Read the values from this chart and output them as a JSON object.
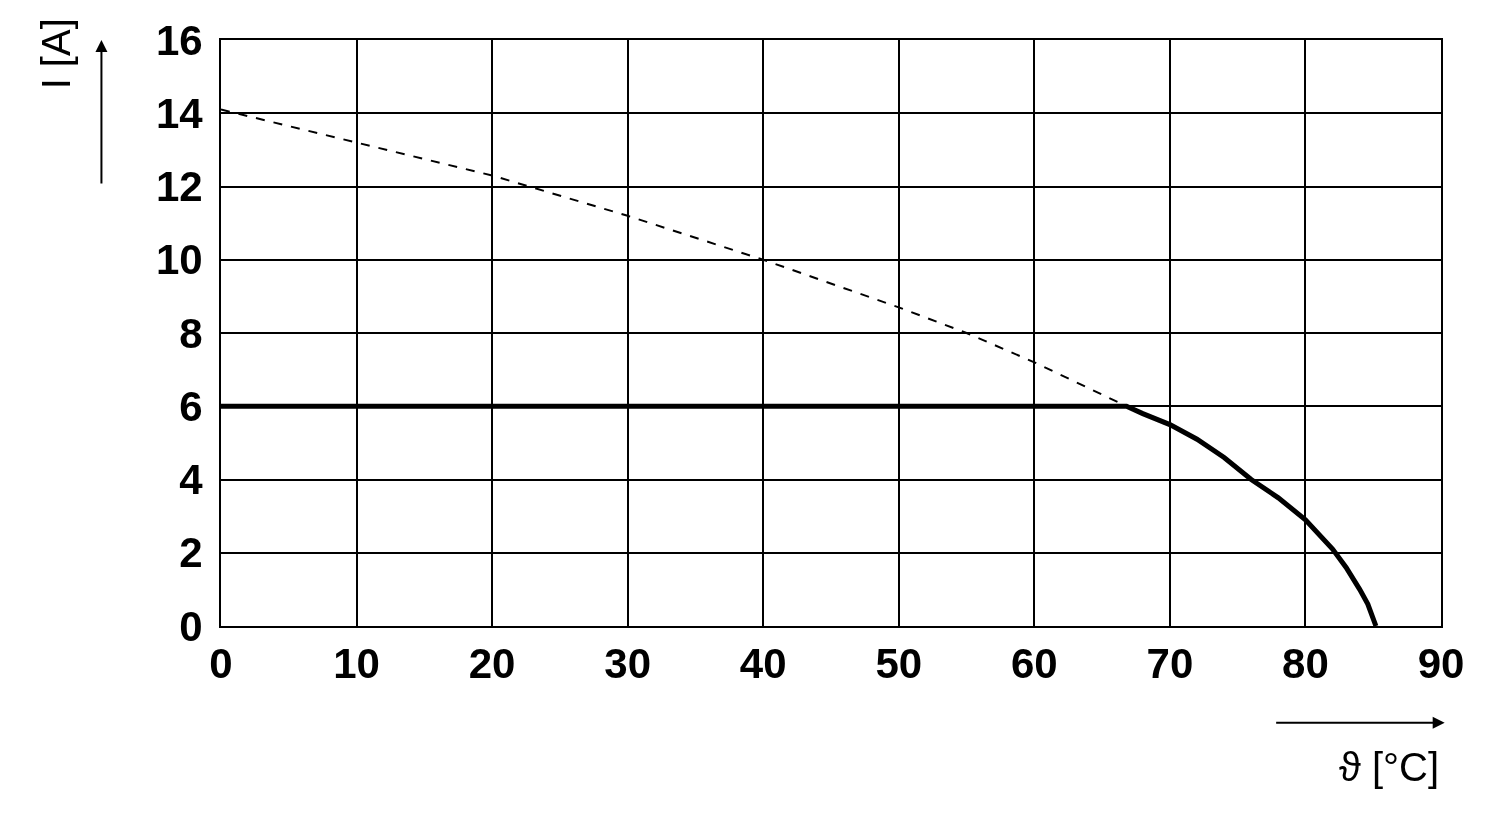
{
  "chart_data": {
    "type": "line",
    "xlabel": "ϑ [°C]",
    "ylabel": "I [A]",
    "xlim": [
      0,
      90
    ],
    "xticks": [
      0,
      10,
      20,
      30,
      40,
      50,
      60,
      70,
      80,
      90
    ],
    "ylim": [
      0,
      16
    ],
    "yticks": [
      0,
      2,
      4,
      6,
      8,
      10,
      12,
      14,
      16
    ],
    "grid": true,
    "marker": "none",
    "series": [
      {
        "color": "#000000",
        "line_style": "dashed",
        "x": [
          0,
          10,
          20,
          30,
          40,
          50,
          55,
          60,
          66.8
        ],
        "values": [
          14.1,
          13.2,
          12.3,
          11.2,
          10.0,
          8.7,
          8.0,
          7.2,
          6.0
        ]
      },
      {
        "color": "#000000",
        "line_style": "solid",
        "x": [
          0,
          66.8,
          68,
          70,
          72,
          74,
          76,
          78,
          80,
          82,
          83,
          84,
          84.6,
          85.2
        ],
        "values": [
          6,
          6,
          5.8,
          5.5,
          5.1,
          4.6,
          4.0,
          3.5,
          2.9,
          2.1,
          1.6,
          1.0,
          0.6,
          0
        ]
      }
    ]
  }
}
